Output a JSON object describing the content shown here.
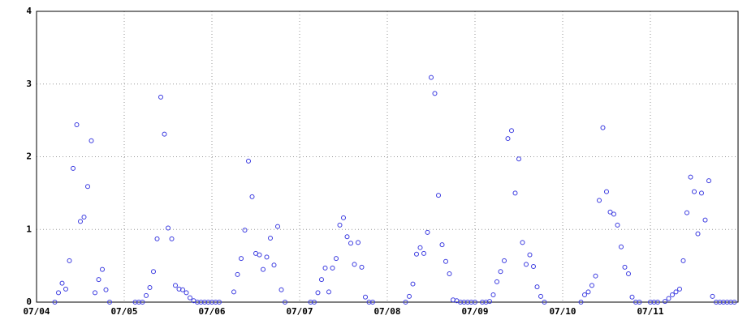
{
  "chart_data": {
    "type": "scatter",
    "x": [
      5,
      6,
      7,
      8,
      9,
      10,
      11,
      12,
      13,
      14,
      15,
      16,
      17,
      18,
      19,
      20,
      27,
      28,
      29,
      30,
      31,
      32,
      33,
      34,
      35,
      36,
      37,
      38,
      39,
      40,
      41,
      42,
      43,
      44,
      45,
      46,
      47,
      48,
      49,
      50,
      54,
      55,
      56,
      57,
      58,
      59,
      60,
      61,
      62,
      63,
      64,
      65,
      66,
      67,
      68,
      75,
      76,
      77,
      78,
      79,
      80,
      81,
      82,
      83,
      84,
      85,
      86,
      87,
      88,
      89,
      90,
      91,
      92,
      101,
      102,
      103,
      104,
      105,
      106,
      107,
      108,
      109,
      110,
      111,
      112,
      113,
      114,
      115,
      116,
      117,
      118,
      119,
      120,
      122,
      123,
      124,
      125,
      126,
      127,
      128,
      129,
      130,
      131,
      132,
      133,
      134,
      135,
      136,
      137,
      138,
      139,
      149,
      150,
      151,
      152,
      153,
      154,
      155,
      156,
      157,
      158,
      159,
      160,
      161,
      162,
      163,
      164,
      165,
      168,
      169,
      170,
      172,
      173,
      174,
      175,
      176,
      177,
      178,
      179,
      180,
      181,
      182,
      183,
      184,
      185,
      186,
      187,
      188,
      189,
      190,
      191
    ],
    "series": [
      {
        "color": "#3a3ae0",
        "values": [
          0,
          0.13,
          0.26,
          0.18,
          0.57,
          1.84,
          2.44,
          1.11,
          1.17,
          1.59,
          2.22,
          0.13,
          0.31,
          0.45,
          0.17,
          0,
          0,
          0,
          0,
          0.09,
          0.2,
          0.42,
          0.87,
          2.82,
          2.31,
          1.02,
          0.87,
          0.23,
          0.18,
          0.17,
          0.13,
          0.06,
          0.02,
          0,
          0,
          0,
          0,
          0,
          0,
          0,
          0.14,
          0.38,
          0.6,
          0.99,
          1.94,
          1.45,
          0.67,
          0.65,
          0.45,
          0.62,
          0.88,
          0.51,
          1.04,
          0.17,
          0,
          0,
          0,
          0.13,
          0.31,
          0.47,
          0.14,
          0.47,
          0.6,
          1.06,
          1.16,
          0.9,
          0.81,
          0.52,
          0.82,
          0.48,
          0.07,
          0,
          0,
          0,
          0.08,
          0.25,
          0.66,
          0.75,
          0.67,
          0.96,
          3.09,
          2.87,
          1.47,
          0.79,
          0.56,
          0.39,
          0.03,
          0.02,
          0,
          0,
          0,
          0,
          0,
          0,
          0,
          0.01,
          0.1,
          0.28,
          0.42,
          0.57,
          2.25,
          2.36,
          1.5,
          1.97,
          0.82,
          0.52,
          0.65,
          0.49,
          0.21,
          0.08,
          0,
          0,
          0.1,
          0.14,
          0.23,
          0.36,
          1.4,
          2.4,
          1.52,
          1.24,
          1.21,
          1.06,
          0.76,
          0.48,
          0.39,
          0.07,
          0,
          0,
          0,
          0,
          0,
          0.01,
          0.05,
          0.1,
          0.14,
          0.18,
          0.57,
          1.23,
          1.72,
          1.52,
          0.94,
          1.5,
          1.13,
          1.67,
          0.08,
          0,
          0,
          0,
          0,
          0,
          0
        ]
      }
    ],
    "xlim": [
      0,
      192
    ],
    "xticks": [
      {
        "value": 0,
        "label": "07/04"
      },
      {
        "value": 24,
        "label": "07/05"
      },
      {
        "value": 48,
        "label": "07/06"
      },
      {
        "value": 72,
        "label": "07/07"
      },
      {
        "value": 96,
        "label": "07/08"
      },
      {
        "value": 120,
        "label": "07/09"
      },
      {
        "value": 144,
        "label": "07/10"
      },
      {
        "value": 168,
        "label": "07/11"
      }
    ],
    "ylim": [
      0,
      4
    ],
    "yticks": [
      0,
      1,
      2,
      3,
      4
    ],
    "grid": true
  }
}
